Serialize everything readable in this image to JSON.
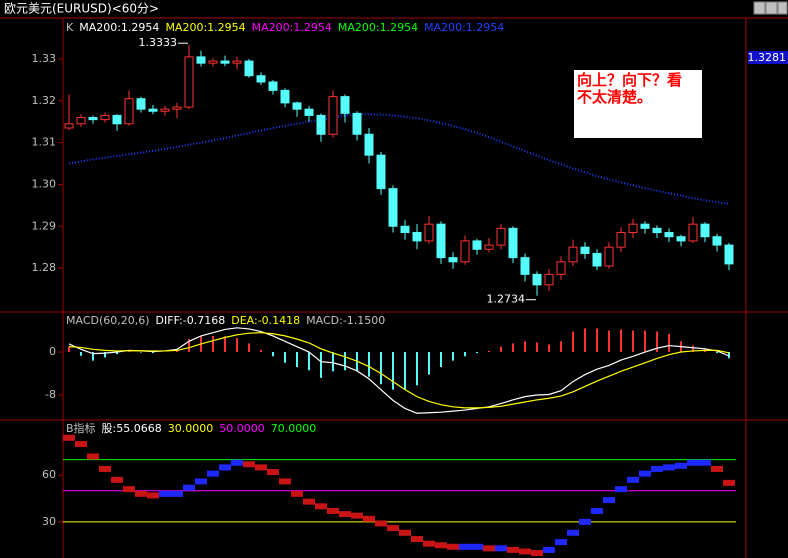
{
  "header": {
    "title": "欧元美元(EURUSD)<60分>"
  },
  "chart_data": [
    {
      "type": "candlestick",
      "legend": [
        {
          "text": "K",
          "color": "#c0c0c0"
        },
        {
          "text": "MA200:1.2954",
          "color": "#ffffff"
        },
        {
          "text": "MA200:1.2954",
          "color": "#ffff00"
        },
        {
          "text": "MA200:1.2954",
          "color": "#ff00ff"
        },
        {
          "text": "MA200:1.2954",
          "color": "#00ff00"
        },
        {
          "text": "MA200:1.2954",
          "color": "#2040ff"
        }
      ],
      "open": [
        1.3135,
        1.3145,
        1.316,
        1.3155,
        1.3165,
        1.3145,
        1.3205,
        1.318,
        1.3175,
        1.318,
        1.3185,
        1.3305,
        1.329,
        1.3295,
        1.329,
        1.3295,
        1.326,
        1.3245,
        1.3225,
        1.3195,
        1.318,
        1.3165,
        1.312,
        1.321,
        1.317,
        1.312,
        1.307,
        1.299,
        1.29,
        1.2885,
        1.2865,
        1.2905,
        1.2825,
        1.2815,
        1.2865,
        1.2845,
        1.2855,
        1.2895,
        1.2825,
        1.2785,
        1.276,
        1.2785,
        1.2815,
        1.285,
        1.2835,
        1.2805,
        1.285,
        1.2885,
        1.2905,
        1.2895,
        1.2885,
        1.2875,
        1.2865,
        1.2905,
        1.2875,
        1.2855
      ],
      "high": [
        1.3215,
        1.3168,
        1.3165,
        1.3172,
        1.3168,
        1.3225,
        1.321,
        1.319,
        1.3188,
        1.3195,
        1.3333,
        1.332,
        1.3302,
        1.3308,
        1.3305,
        1.33,
        1.3268,
        1.325,
        1.323,
        1.3198,
        1.3188,
        1.317,
        1.3225,
        1.3215,
        1.3175,
        1.3135,
        1.3078,
        1.2998,
        1.2915,
        1.2905,
        1.2925,
        1.2912,
        1.2838,
        1.2878,
        1.287,
        1.2872,
        1.2905,
        1.29,
        1.2835,
        1.2792,
        1.2798,
        1.2828,
        1.2868,
        1.2862,
        1.2845,
        1.2862,
        1.2898,
        1.2918,
        1.2912,
        1.2902,
        1.2895,
        1.288,
        1.2922,
        1.291,
        1.2882,
        1.286
      ],
      "low": [
        1.313,
        1.3138,
        1.3145,
        1.3148,
        1.3128,
        1.314,
        1.3172,
        1.3168,
        1.3165,
        1.3158,
        1.318,
        1.3282,
        1.3282,
        1.3283,
        1.3275,
        1.3255,
        1.3238,
        1.3215,
        1.3185,
        1.3162,
        1.315,
        1.3102,
        1.3112,
        1.3148,
        1.3105,
        1.305,
        1.2975,
        1.2885,
        1.2868,
        1.2845,
        1.2858,
        1.281,
        1.2798,
        1.2808,
        1.2832,
        1.2838,
        1.2845,
        1.2812,
        1.2768,
        1.2734,
        1.2745,
        1.2772,
        1.2805,
        1.2822,
        1.2795,
        1.2798,
        1.2838,
        1.2872,
        1.2882,
        1.2872,
        1.2862,
        1.2852,
        1.286,
        1.2862,
        1.284,
        1.2795
      ],
      "close": [
        1.3145,
        1.316,
        1.3155,
        1.3165,
        1.3145,
        1.3205,
        1.318,
        1.3175,
        1.318,
        1.3185,
        1.3305,
        1.329,
        1.3295,
        1.329,
        1.3295,
        1.326,
        1.3245,
        1.3225,
        1.3195,
        1.318,
        1.3165,
        1.312,
        1.321,
        1.317,
        1.312,
        1.307,
        1.299,
        1.29,
        1.2885,
        1.2865,
        1.2905,
        1.2825,
        1.2815,
        1.2865,
        1.2845,
        1.2855,
        1.2895,
        1.2825,
        1.2785,
        1.276,
        1.2785,
        1.2815,
        1.285,
        1.2835,
        1.2805,
        1.285,
        1.2885,
        1.2905,
        1.2895,
        1.2885,
        1.2875,
        1.2865,
        1.2905,
        1.2875,
        1.2855,
        1.281
      ],
      "up_color": "#ff3232",
      "down_color": "#54fcfc",
      "ma200": {
        "color": "#2040ff",
        "values": [
          1.305,
          1.3055,
          1.306,
          1.3064,
          1.3068,
          1.3072,
          1.3076,
          1.308,
          1.3085,
          1.309,
          1.3095,
          1.31,
          1.3105,
          1.3111,
          1.3117,
          1.3123,
          1.3129,
          1.3135,
          1.314,
          1.3145,
          1.315,
          1.3155,
          1.316,
          1.3165,
          1.3168,
          1.3168,
          1.3167,
          1.3165,
          1.3162,
          1.3158,
          1.3153,
          1.3147,
          1.314,
          1.3132,
          1.3123,
          1.3113,
          1.3102,
          1.3091,
          1.308,
          1.3069,
          1.3058,
          1.3048,
          1.3038,
          1.3029,
          1.302,
          1.3012,
          1.3005,
          1.2998,
          1.2991,
          1.2985,
          1.2979,
          1.2973,
          1.2967,
          1.2962,
          1.2957,
          1.2954
        ]
      },
      "current_price": 1.3281,
      "annotation": "向上？向下？看不太清楚。",
      "ylim": [
        1.2695,
        1.3398
      ],
      "yticks": [
        1.28,
        1.29,
        {
          "value": 1.3,
          "label": "1.30"
        },
        1.31,
        1.32,
        1.33
      ]
    },
    {
      "type": "macd",
      "legend": [
        {
          "text": "MACD(60,20,6)",
          "color": "#c0c0c0"
        },
        {
          "text": "DIFF:-0.7168",
          "color": "#ffffff"
        },
        {
          "text": "DEA:-0.1418",
          "color": "#ffff00"
        },
        {
          "text": "MACD:-1.1500",
          "color": "#c0c0c0"
        }
      ],
      "diff": {
        "color": "#ffffff",
        "values": [
          1.5,
          0.5,
          -0.3,
          -0.2,
          0.0,
          0.3,
          0.2,
          0.1,
          0.2,
          0.5,
          2.0,
          3.0,
          3.6,
          4.2,
          4.5,
          4.3,
          3.8,
          3.0,
          2.0,
          1.0,
          0.0,
          -1.8,
          -2.0,
          -2.6,
          -3.5,
          -5.0,
          -7.0,
          -9.0,
          -10.5,
          -11.4,
          -11.3,
          -11.2,
          -11.0,
          -10.8,
          -10.5,
          -10.2,
          -9.6,
          -8.9,
          -8.3,
          -8.0,
          -7.9,
          -7.2,
          -5.5,
          -4.2,
          -3.2,
          -2.5,
          -1.5,
          -0.8,
          0.0,
          0.7,
          1.2,
          1.0,
          0.8,
          0.6,
          0.2,
          -0.7168
        ]
      },
      "dea": {
        "color": "#ffff00",
        "values": [
          1.0,
          0.85,
          0.5,
          0.3,
          0.2,
          0.25,
          0.24,
          0.2,
          0.2,
          0.3,
          0.8,
          1.5,
          2.1,
          2.7,
          3.2,
          3.5,
          3.6,
          3.4,
          3.0,
          2.4,
          1.7,
          0.6,
          -0.2,
          -0.9,
          -1.7,
          -2.7,
          -4.0,
          -5.5,
          -7.0,
          -8.3,
          -9.2,
          -9.8,
          -10.2,
          -10.4,
          -10.4,
          -10.3,
          -10.1,
          -9.7,
          -9.3,
          -8.9,
          -8.6,
          -8.2,
          -7.4,
          -6.4,
          -5.4,
          -4.5,
          -3.6,
          -2.8,
          -2.0,
          -1.2,
          -0.5,
          0.0,
          0.2,
          0.3,
          0.3,
          -0.1418
        ]
      },
      "macd": [
        1.0,
        -0.7,
        -1.6,
        -1.0,
        -0.4,
        0.1,
        -0.1,
        -0.2,
        0.0,
        0.4,
        2.4,
        3.0,
        3.0,
        3.0,
        2.6,
        1.6,
        0.4,
        -0.8,
        -2.0,
        -2.8,
        -3.4,
        -4.8,
        -3.6,
        -3.4,
        -3.6,
        -4.6,
        -6.0,
        -7.0,
        -7.0,
        -6.2,
        -4.2,
        -2.8,
        -1.6,
        -0.8,
        -0.2,
        0.2,
        1.0,
        1.6,
        2.0,
        1.8,
        1.4,
        2.0,
        3.8,
        4.4,
        4.4,
        4.0,
        4.2,
        4.0,
        4.0,
        3.8,
        3.4,
        2.0,
        1.2,
        0.6,
        -0.2,
        -1.15
      ],
      "up_color": "#ff3232",
      "down_color": "#54fcfc",
      "ylim": [
        -12.65,
        7.26
      ],
      "yticks": [
        -8,
        0
      ]
    },
    {
      "type": "indicator",
      "legend": [
        {
          "text": "B指标",
          "color": "#c0c0c0"
        },
        {
          "text": "股:55.0668",
          "color": "#ffffff"
        },
        {
          "text": "30.0000",
          "color": "#ffff00"
        },
        {
          "text": "50.0000",
          "color": "#ff00ff"
        },
        {
          "text": "70.0000",
          "color": "#00ff00"
        }
      ],
      "values": [
        84,
        80,
        72,
        64,
        57,
        51,
        48,
        47,
        48,
        48,
        52,
        56,
        61,
        65,
        68,
        67,
        65,
        62,
        56,
        48,
        43,
        40,
        37,
        35,
        34,
        32,
        29,
        26,
        23,
        19,
        16,
        15,
        14,
        14,
        14,
        13,
        13,
        12,
        11,
        10,
        12,
        17,
        23,
        30,
        37,
        44,
        51,
        57,
        61,
        64,
        65,
        66,
        68,
        68,
        64,
        55.0668
      ],
      "up_color": "#1e28ff",
      "down_color": "#c81414",
      "levels": [
        {
          "value": 30,
          "color": "#ffff00"
        },
        {
          "value": 50,
          "color": "#ff00ff"
        },
        {
          "value": 70,
          "color": "#00ff00"
        }
      ],
      "ylim": [
        6.8,
        94.8
      ],
      "yticks": [
        30,
        60
      ]
    }
  ]
}
